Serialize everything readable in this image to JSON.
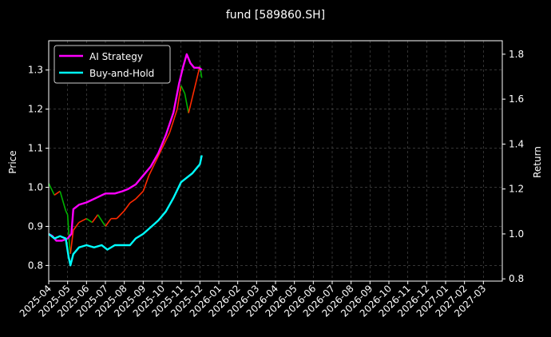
{
  "chart_data": {
    "type": "line",
    "title": "fund [589860.SH]",
    "ylabel_left": "Price",
    "ylabel_right": "Return",
    "xlabel": "",
    "ylim_left": [
      0.76,
      1.375
    ],
    "ylim_right": [
      0.79,
      1.86
    ],
    "xlim": [
      0,
      24.0
    ],
    "grid": true,
    "legend_position": "top-left",
    "x_ticks": [
      "2025-04",
      "2025-05",
      "2025-06",
      "2025-07",
      "2025-08",
      "2025-09",
      "2025-10",
      "2025-11",
      "2025-12",
      "2026-01",
      "2026-02",
      "2026-03",
      "2026-04",
      "2026-05",
      "2026-06",
      "2026-07",
      "2026-08",
      "2026-09",
      "2026-10",
      "2026-11",
      "2026-12",
      "2027-01",
      "2027-02",
      "2027-03"
    ],
    "y_ticks_left": [
      0.8,
      0.9,
      1.0,
      1.1,
      1.2,
      1.3
    ],
    "y_ticks_right": [
      0.8,
      1.0,
      1.2,
      1.4,
      1.6,
      1.8
    ],
    "series": [
      {
        "name": "AI Strategy",
        "axis": "right",
        "color": "#ff00ff",
        "points": [
          [
            0,
            1.0
          ],
          [
            0.2,
            0.99
          ],
          [
            0.4,
            0.97
          ],
          [
            0.7,
            0.97
          ],
          [
            1.0,
            0.98
          ],
          [
            1.2,
            1.0
          ],
          [
            1.3,
            1.11
          ],
          [
            1.6,
            1.13
          ],
          [
            2.0,
            1.14
          ],
          [
            2.5,
            1.16
          ],
          [
            3.0,
            1.18
          ],
          [
            3.5,
            1.18
          ],
          [
            3.9,
            1.19
          ],
          [
            4.2,
            1.2
          ],
          [
            4.6,
            1.22
          ],
          [
            5.0,
            1.26
          ],
          [
            5.4,
            1.3
          ],
          [
            5.8,
            1.36
          ],
          [
            6.2,
            1.44
          ],
          [
            6.6,
            1.54
          ],
          [
            6.9,
            1.67
          ],
          [
            7.1,
            1.74
          ],
          [
            7.3,
            1.8
          ],
          [
            7.5,
            1.76
          ],
          [
            7.7,
            1.74
          ],
          [
            7.95,
            1.74
          ],
          [
            8.1,
            1.73
          ]
        ]
      },
      {
        "name": "Buy-and-Hold",
        "axis": "right",
        "color": "#00ffff",
        "points": [
          [
            0,
            1.0
          ],
          [
            0.3,
            0.98
          ],
          [
            0.6,
            0.99
          ],
          [
            0.9,
            0.98
          ],
          [
            1.05,
            0.9
          ],
          [
            1.15,
            0.86
          ],
          [
            1.3,
            0.91
          ],
          [
            1.6,
            0.94
          ],
          [
            2.0,
            0.95
          ],
          [
            2.4,
            0.94
          ],
          [
            2.8,
            0.95
          ],
          [
            3.1,
            0.93
          ],
          [
            3.5,
            0.95
          ],
          [
            3.9,
            0.95
          ],
          [
            4.3,
            0.95
          ],
          [
            4.6,
            0.98
          ],
          [
            5.0,
            1.0
          ],
          [
            5.4,
            1.03
          ],
          [
            5.8,
            1.06
          ],
          [
            6.2,
            1.1
          ],
          [
            6.6,
            1.16
          ],
          [
            7.0,
            1.23
          ],
          [
            7.3,
            1.25
          ],
          [
            7.6,
            1.27
          ],
          [
            7.8,
            1.29
          ],
          [
            8.0,
            1.31
          ],
          [
            8.1,
            1.35
          ]
        ]
      }
    ],
    "price_series": {
      "axis": "left",
      "style": "candlestick",
      "up_color": "#ff2a00",
      "down_color": "#00b300",
      "points": [
        [
          0,
          1.01
        ],
        [
          0.3,
          0.98
        ],
        [
          0.6,
          0.99
        ],
        [
          0.9,
          0.94
        ],
        [
          1.0,
          0.93
        ],
        [
          1.1,
          0.85
        ],
        [
          1.15,
          0.83
        ],
        [
          1.3,
          0.89
        ],
        [
          1.6,
          0.91
        ],
        [
          2.0,
          0.92
        ],
        [
          2.3,
          0.91
        ],
        [
          2.6,
          0.93
        ],
        [
          3.0,
          0.9
        ],
        [
          3.3,
          0.92
        ],
        [
          3.6,
          0.92
        ],
        [
          4.0,
          0.94
        ],
        [
          4.3,
          0.96
        ],
        [
          4.6,
          0.97
        ],
        [
          5.0,
          0.99
        ],
        [
          5.3,
          1.03
        ],
        [
          5.6,
          1.06
        ],
        [
          6.0,
          1.1
        ],
        [
          6.4,
          1.14
        ],
        [
          6.8,
          1.2
        ],
        [
          7.0,
          1.26
        ],
        [
          7.2,
          1.24
        ],
        [
          7.4,
          1.19
        ],
        [
          7.6,
          1.23
        ],
        [
          7.8,
          1.27
        ],
        [
          8.0,
          1.31
        ],
        [
          8.1,
          1.28
        ]
      ]
    },
    "legend": [
      {
        "label": "AI Strategy",
        "color": "#ff00ff"
      },
      {
        "label": "Buy-and-Hold",
        "color": "#00ffff"
      }
    ]
  }
}
